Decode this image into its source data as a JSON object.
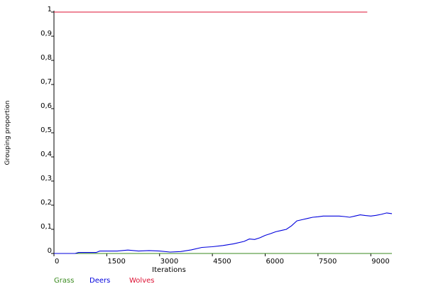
{
  "chart_data": {
    "type": "line",
    "title": "",
    "xlabel": "Iterations",
    "ylabel": "Grouping proportion",
    "xlim": [
      0,
      9600
    ],
    "ylim": [
      0,
      1
    ],
    "grid": false,
    "legend_position": "bottom-left",
    "x_ticks": [
      {
        "value": 0,
        "label": "0"
      },
      {
        "value": 1500,
        "label": "1500"
      },
      {
        "value": 3000,
        "label": "3000"
      },
      {
        "value": 4500,
        "label": "4500"
      },
      {
        "value": 6000,
        "label": "6000"
      },
      {
        "value": 7500,
        "label": "7500"
      },
      {
        "value": 9000,
        "label": "9000"
      }
    ],
    "y_ticks": [
      {
        "value": 0,
        "label": "0"
      },
      {
        "value": 0.1,
        "label": "0,1"
      },
      {
        "value": 0.2,
        "label": "0,2"
      },
      {
        "value": 0.3,
        "label": "0,3"
      },
      {
        "value": 0.4,
        "label": "0,4"
      },
      {
        "value": 0.5,
        "label": "0,5"
      },
      {
        "value": 0.6,
        "label": "0,6"
      },
      {
        "value": 0.7,
        "label": "0,7"
      },
      {
        "value": 0.8,
        "label": "0,8"
      },
      {
        "value": 0.9,
        "label": "0,9"
      },
      {
        "value": 1,
        "label": "1"
      }
    ],
    "series": [
      {
        "name": "Grass",
        "color": "#3a8a1f",
        "x": [
          0,
          9600
        ],
        "y": [
          0,
          0
        ]
      },
      {
        "name": "Deers",
        "color": "#0000dd",
        "x": [
          0,
          300,
          600,
          700,
          900,
          1200,
          1300,
          1500,
          1800,
          2100,
          2400,
          2700,
          3000,
          3300,
          3600,
          3900,
          4200,
          4500,
          4800,
          5100,
          5400,
          5550,
          5700,
          5850,
          6000,
          6150,
          6300,
          6450,
          6600,
          6750,
          6900,
          7050,
          7200,
          7350,
          7500,
          7650,
          7800,
          7950,
          8100,
          8250,
          8400,
          8550,
          8700,
          8850,
          9000,
          9150,
          9300,
          9450,
          9600
        ],
        "y": [
          0.0,
          0.0,
          0.0,
          0.004,
          0.004,
          0.004,
          0.01,
          0.01,
          0.01,
          0.014,
          0.01,
          0.012,
          0.01,
          0.006,
          0.008,
          0.015,
          0.025,
          0.028,
          0.033,
          0.04,
          0.05,
          0.06,
          0.058,
          0.065,
          0.075,
          0.082,
          0.09,
          0.095,
          0.1,
          0.115,
          0.135,
          0.14,
          0.145,
          0.15,
          0.152,
          0.155,
          0.155,
          0.155,
          0.155,
          0.153,
          0.15,
          0.155,
          0.16,
          0.157,
          0.155,
          0.158,
          0.162,
          0.168,
          0.165
        ]
      },
      {
        "name": "Wolves",
        "color": "#dd1133",
        "x": [
          0,
          8900
        ],
        "y": [
          1,
          1
        ]
      }
    ]
  }
}
